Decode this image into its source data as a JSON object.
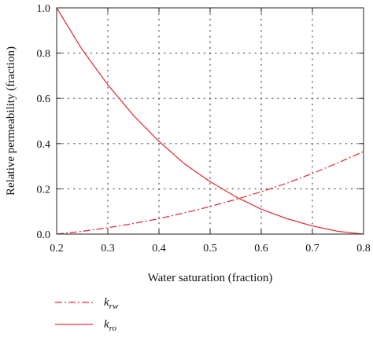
{
  "chart_data": {
    "type": "line",
    "title": "",
    "xlabel": "Water saturation (fraction)",
    "ylabel": "Relative permeability (fraction)",
    "xlim": [
      0.2,
      0.8
    ],
    "ylim": [
      0.0,
      1.0
    ],
    "xticks": [
      0.2,
      0.3,
      0.4,
      0.5,
      0.6,
      0.7,
      0.8
    ],
    "yticks": [
      0.0,
      0.2,
      0.4,
      0.6,
      0.8,
      1.0
    ],
    "xtick_labels": [
      "0.2",
      "0.3",
      "0.4",
      "0.5",
      "0.6",
      "0.7",
      "0.8"
    ],
    "ytick_labels": [
      "0.0",
      "0.2",
      "0.4",
      "0.6",
      "0.8",
      "1.0"
    ],
    "grid": true,
    "legend_position": "bottom-left, below plot",
    "series": [
      {
        "name": "krw",
        "name_main": "k",
        "name_sub": "rw",
        "style": "dash-dot",
        "color": "#e0343c",
        "x": [
          0.2,
          0.25,
          0.3,
          0.35,
          0.4,
          0.45,
          0.5,
          0.55,
          0.6,
          0.65,
          0.7,
          0.75,
          0.8
        ],
        "y": [
          0.0,
          0.012,
          0.028,
          0.047,
          0.068,
          0.094,
          0.122,
          0.153,
          0.187,
          0.225,
          0.268,
          0.315,
          0.365
        ]
      },
      {
        "name": "kro",
        "name_main": "k",
        "name_sub": "ro",
        "style": "solid",
        "color": "#e0343c",
        "x": [
          0.2,
          0.25,
          0.3,
          0.35,
          0.4,
          0.45,
          0.5,
          0.55,
          0.6,
          0.65,
          0.7,
          0.75,
          0.8
        ],
        "y": [
          1.0,
          0.815,
          0.66,
          0.525,
          0.41,
          0.31,
          0.232,
          0.165,
          0.11,
          0.068,
          0.036,
          0.012,
          0.0
        ]
      }
    ]
  }
}
